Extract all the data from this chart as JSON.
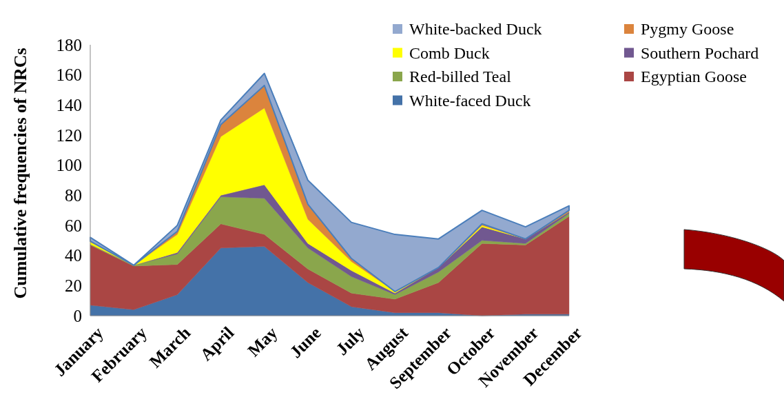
{
  "chart_data": {
    "type": "area",
    "stacked": true,
    "ylabel": "Cumulative frequencies of NRCs",
    "categories": [
      "January",
      "February",
      "March",
      "April",
      "May",
      "June",
      "July",
      "August",
      "September",
      "October",
      "November",
      "December"
    ],
    "ylim": [
      0,
      180
    ],
    "yticks": [
      0,
      20,
      40,
      60,
      80,
      100,
      120,
      140,
      160,
      180
    ],
    "grid": false,
    "legend": "top right",
    "series": [
      {
        "name": "White-faced Duck",
        "color": "#4472a8",
        "values": [
          7,
          4,
          14,
          45,
          46,
          22,
          6,
          2,
          2,
          0,
          1,
          1
        ]
      },
      {
        "name": "Egyptian Goose",
        "color": "#aa4644",
        "values": [
          40,
          29,
          20,
          16,
          8,
          9,
          9,
          9,
          20,
          48,
          46,
          65
        ]
      },
      {
        "name": "Red-billed Teal",
        "color": "#8aa64c",
        "values": [
          0.5,
          0.5,
          7,
          18,
          24,
          14,
          11,
          3,
          7,
          2,
          1,
          2
        ]
      },
      {
        "name": "Southern Pochard",
        "color": "#715890",
        "values": [
          0,
          0,
          1,
          1,
          9,
          3,
          4,
          1,
          3,
          9,
          3,
          1
        ]
      },
      {
        "name": "Comb Duck",
        "color": "#ffff00",
        "values": [
          1.5,
          0,
          12,
          39,
          51,
          16,
          6,
          1,
          0,
          1,
          0,
          0
        ]
      },
      {
        "name": "Pygmy Goose",
        "color": "#db843d",
        "values": [
          0.5,
          0,
          2,
          8,
          15,
          10,
          2,
          0,
          0,
          1,
          0,
          1
        ]
      },
      {
        "name": "White-backed Duck",
        "color": "#93a9cf",
        "values": [
          2.5,
          0,
          4,
          3,
          8,
          16,
          24,
          38,
          19,
          9,
          8,
          3
        ]
      }
    ]
  }
}
